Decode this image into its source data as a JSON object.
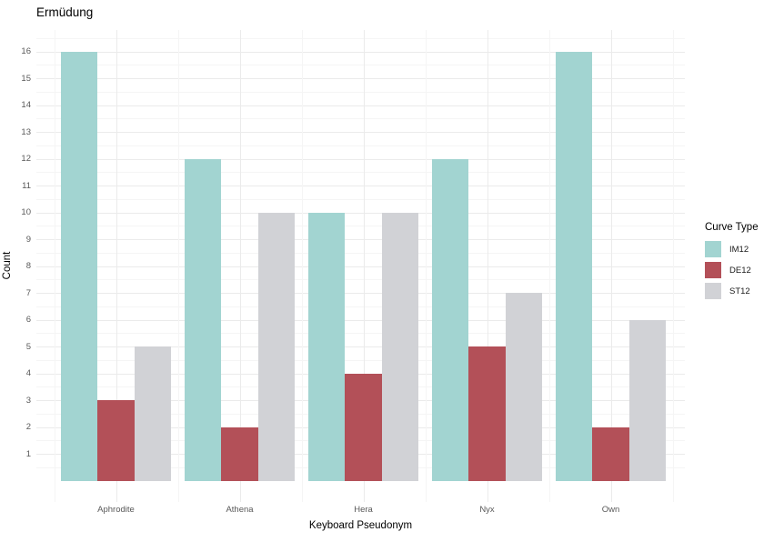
{
  "title": "Ermüdung",
  "chart_data": {
    "type": "bar",
    "title": "Ermüdung",
    "xlabel": "Keyboard Pseudonym",
    "ylabel": "Count",
    "categories": [
      "Aphrodite",
      "Athena",
      "Hera",
      "Nyx",
      "Own"
    ],
    "series": [
      {
        "name": "IM12",
        "color": "#A2D4D1",
        "values": [
          16,
          12,
          10,
          12,
          16
        ]
      },
      {
        "name": "DE12",
        "color": "#B35058",
        "values": [
          3,
          2,
          4,
          5,
          2
        ]
      },
      {
        "name": "ST12",
        "color": "#D1D2D6",
        "values": [
          5,
          10,
          10,
          7,
          6
        ]
      }
    ],
    "legend_title": "Curve Type",
    "legend_position": "right",
    "y_ticks": [
      1,
      2,
      3,
      4,
      5,
      6,
      7,
      8,
      9,
      10,
      11,
      12,
      13,
      14,
      15,
      16
    ],
    "ylim": [
      -0.8,
      16.8
    ],
    "grid": "major and minor, light gray on white",
    "bar_layout": "dodged",
    "style": {
      "major_grid_color": "#EBEBEB",
      "minor_grid_color": "#F5F5F5",
      "tick_label_color": "#595959",
      "axis_title_color": "#000000",
      "background": "#FFFFFF"
    }
  }
}
